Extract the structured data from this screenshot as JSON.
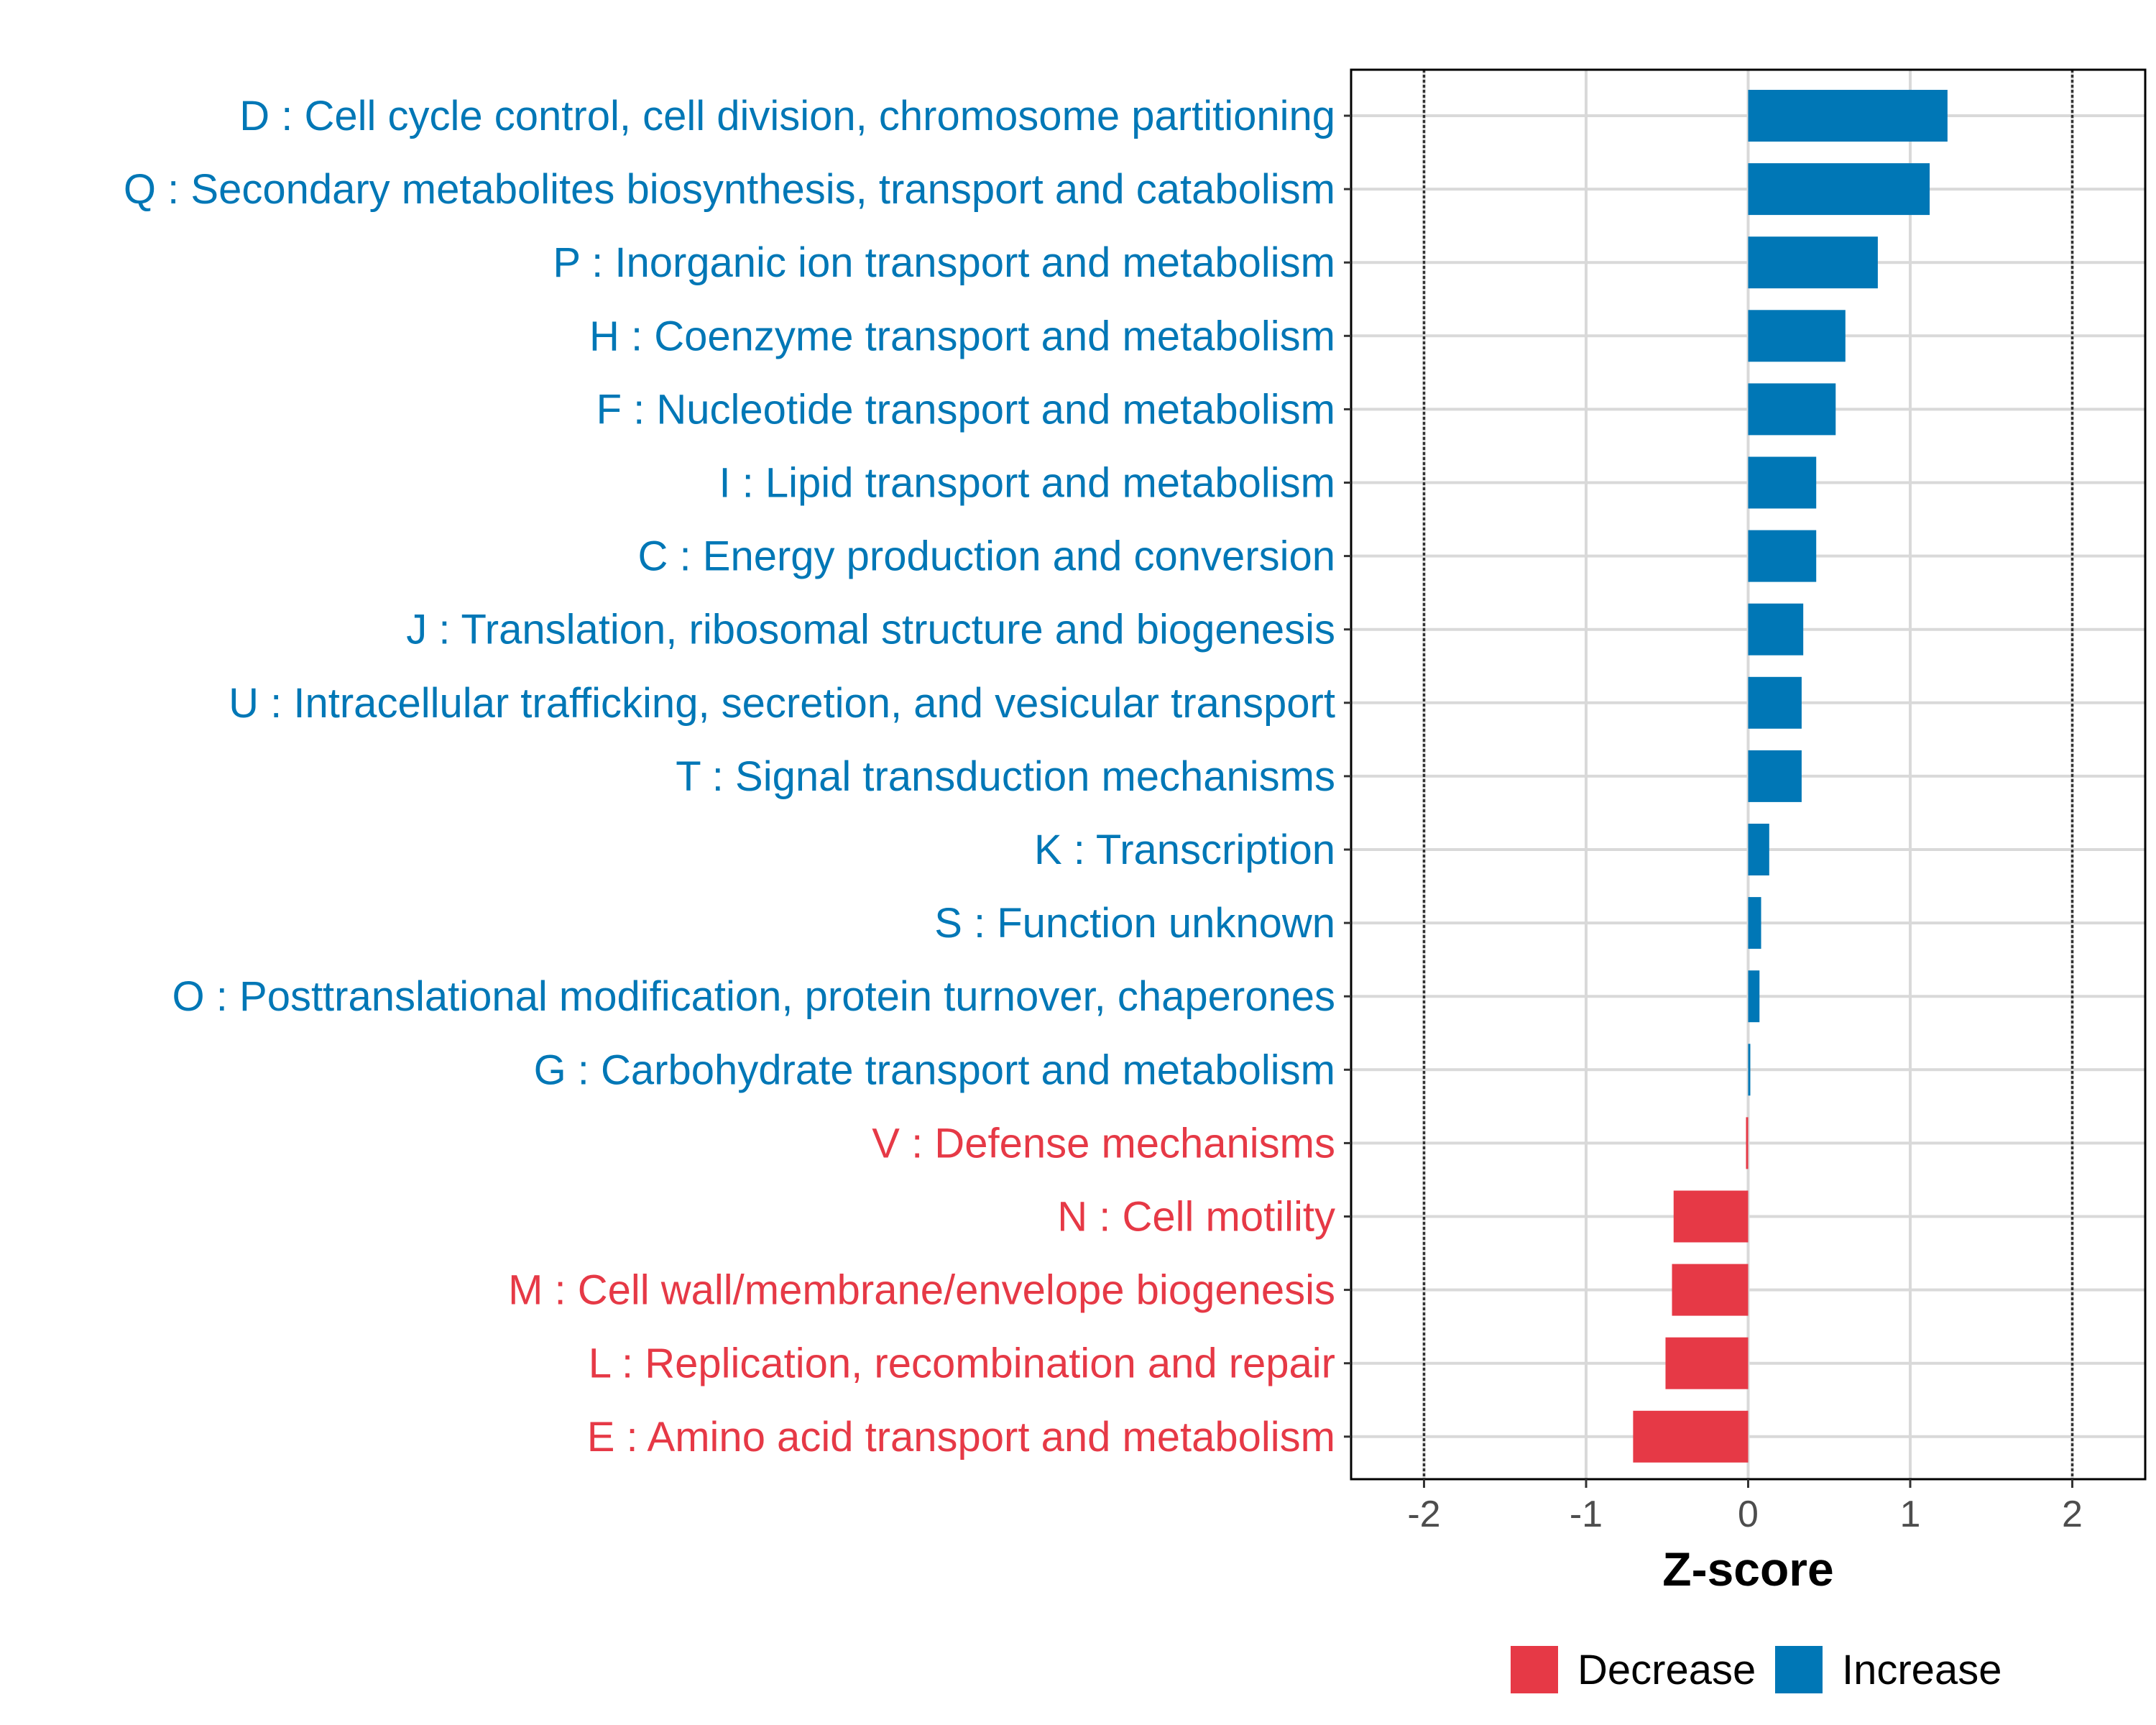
{
  "chart_data": {
    "type": "bar",
    "orientation": "horizontal",
    "xlabel": "Z-score",
    "xlim": [
      -2.45,
      2.45
    ],
    "xticks": [
      -2,
      -1,
      0,
      1,
      2
    ],
    "xtick_labels": [
      "-2",
      "-1",
      "0",
      "1",
      "2"
    ],
    "reference_lines": [
      -2,
      2
    ],
    "grid": true,
    "legend_position": "bottom",
    "colors": {
      "Decrease": "#E63946",
      "Increase": "#0077B6"
    },
    "legend": [
      {
        "name": "Decrease",
        "color": "#E63946"
      },
      {
        "name": "Increase",
        "color": "#0077B6"
      }
    ],
    "categories": [
      {
        "label": "D : Cell cycle control, cell division, chromosome partitioning",
        "value": 1.23,
        "group": "Increase"
      },
      {
        "label": "Q : Secondary metabolites biosynthesis, transport and catabolism",
        "value": 1.12,
        "group": "Increase"
      },
      {
        "label": "P : Inorganic ion transport and metabolism",
        "value": 0.8,
        "group": "Increase"
      },
      {
        "label": "H : Coenzyme transport and metabolism",
        "value": 0.6,
        "group": "Increase"
      },
      {
        "label": "F : Nucleotide transport and metabolism",
        "value": 0.54,
        "group": "Increase"
      },
      {
        "label": "I : Lipid transport and metabolism",
        "value": 0.42,
        "group": "Increase"
      },
      {
        "label": "C : Energy production and conversion",
        "value": 0.42,
        "group": "Increase"
      },
      {
        "label": "J : Translation, ribosomal structure and biogenesis",
        "value": 0.34,
        "group": "Increase"
      },
      {
        "label": "U : Intracellular trafficking, secretion, and vesicular transport",
        "value": 0.33,
        "group": "Increase"
      },
      {
        "label": "T : Signal transduction mechanisms",
        "value": 0.33,
        "group": "Increase"
      },
      {
        "label": "K : Transcription",
        "value": 0.13,
        "group": "Increase"
      },
      {
        "label": "S : Function unknown",
        "value": 0.08,
        "group": "Increase"
      },
      {
        "label": "O : Posttranslational modification, protein turnover, chaperones",
        "value": 0.07,
        "group": "Increase"
      },
      {
        "label": "G : Carbohydrate transport and metabolism",
        "value": 0.005,
        "group": "Increase"
      },
      {
        "label": "V : Defense mechanisms",
        "value": -0.01,
        "group": "Decrease"
      },
      {
        "label": "N : Cell motility",
        "value": -0.46,
        "group": "Decrease"
      },
      {
        "label": "M : Cell wall/membrane/envelope biogenesis",
        "value": -0.47,
        "group": "Decrease"
      },
      {
        "label": "L : Replication, recombination and repair",
        "value": -0.51,
        "group": "Decrease"
      },
      {
        "label": "E : Amino acid transport and metabolism",
        "value": -0.71,
        "group": "Decrease"
      }
    ]
  }
}
